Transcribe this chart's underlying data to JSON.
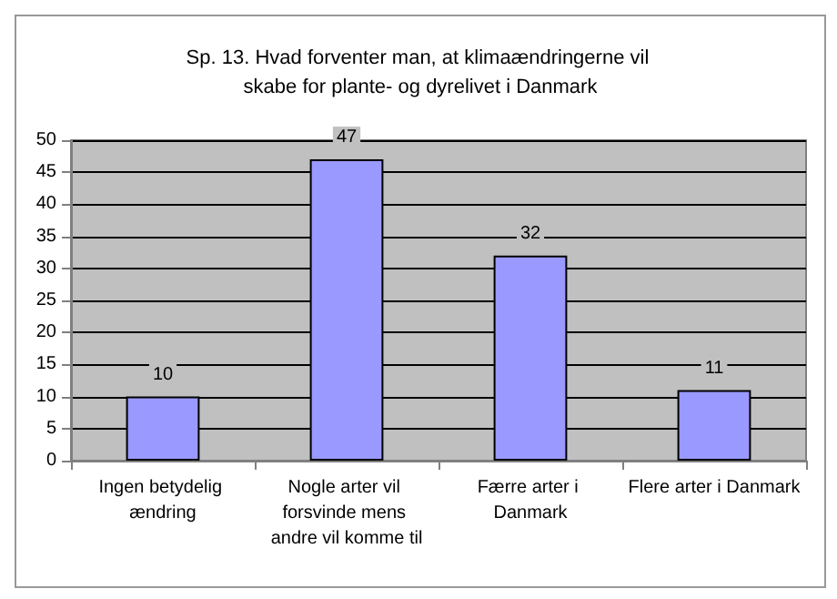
{
  "chart_data": {
    "type": "bar",
    "title": "Sp. 13. Hvad forventer man, at klimaændringerne vil skabe for plante- og dyrelivet i Danmark",
    "categories": [
      "Ingen betydelig ændring",
      "Nogle arter vil forsvinde mens andre vil komme til",
      "Færre arter i Danmark",
      "Flere arter i Danmark"
    ],
    "values": [
      10,
      47,
      32,
      11
    ],
    "color": "#9999ff",
    "data_labels": true,
    "ylim": [
      0,
      50
    ],
    "yticks": [
      0,
      5,
      10,
      15,
      20,
      25,
      30,
      35,
      40,
      45,
      50
    ],
    "grid": "y"
  }
}
